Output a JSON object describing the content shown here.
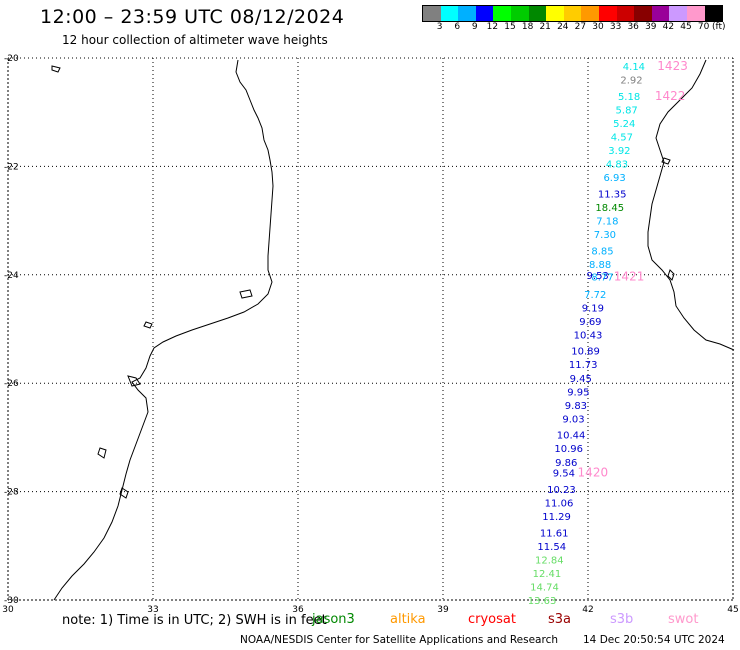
{
  "header": {
    "title": "12:00 – 23:59 UTC 08/12/2024",
    "subtitle": "12 hour collection of altimeter wave heights"
  },
  "colorbar": {
    "colors": [
      "#808080",
      "#00ffff",
      "#00b0ff",
      "#0000ff",
      "#00ff00",
      "#00cc00",
      "#008800",
      "#ffff00",
      "#ffcc00",
      "#ff9900",
      "#ff0000",
      "#cc0000",
      "#880000",
      "#990099",
      "#cc99ff",
      "#ff99cc",
      "#000000"
    ],
    "labels": [
      "3",
      "6",
      "9",
      "12",
      "15",
      "18",
      "21",
      "24",
      "27",
      "30",
      "33",
      "36",
      "39",
      "42",
      "45",
      "70"
    ],
    "unit": "(ft)"
  },
  "axes": {
    "lon_ticks": [
      "30",
      "33",
      "36",
      "39",
      "42",
      "45"
    ],
    "lat_ticks": [
      "-20",
      "-22",
      "-24",
      "-26",
      "-28",
      "-30"
    ]
  },
  "chart_data": {
    "type": "scatter",
    "xlim": [
      30,
      45
    ],
    "ylim": [
      -30,
      -20
    ],
    "grid": true,
    "x_unit": "longitude",
    "y_unit": "latitude",
    "wave_heights_ft": [
      {
        "lat": -20.15,
        "lon": 42.95,
        "v": "4.14",
        "color": "#00e6e6"
      },
      {
        "lat": -20.4,
        "lon": 42.9,
        "v": "2.92",
        "color": "#808080"
      },
      {
        "lat": -20.7,
        "lon": 42.85,
        "v": "5.18",
        "color": "#00e6e6"
      },
      {
        "lat": -20.95,
        "lon": 42.8,
        "v": "5.87",
        "color": "#00e6e6"
      },
      {
        "lat": -21.2,
        "lon": 42.75,
        "v": "5.24",
        "color": "#00e6e6"
      },
      {
        "lat": -21.45,
        "lon": 42.7,
        "v": "4.57",
        "color": "#00e6e6"
      },
      {
        "lat": -21.7,
        "lon": 42.65,
        "v": "3.92",
        "color": "#00e6e6"
      },
      {
        "lat": -21.95,
        "lon": 42.6,
        "v": "4.83",
        "color": "#00e6e6"
      },
      {
        "lat": -22.2,
        "lon": 42.55,
        "v": "6.93",
        "color": "#00b0ff"
      },
      {
        "lat": -22.5,
        "lon": 42.5,
        "v": "11.35",
        "color": "#0000cc"
      },
      {
        "lat": -22.75,
        "lon": 42.45,
        "v": "18.45",
        "color": "#008800"
      },
      {
        "lat": -23.0,
        "lon": 42.4,
        "v": "7.18",
        "color": "#00b0ff"
      },
      {
        "lat": -23.25,
        "lon": 42.35,
        "v": "7.30",
        "color": "#00b0ff"
      },
      {
        "lat": -23.55,
        "lon": 42.3,
        "v": "8.85",
        "color": "#00b0ff"
      },
      {
        "lat": -23.8,
        "lon": 42.25,
        "v": "8.88",
        "color": "#00b0ff"
      },
      {
        "lat": -24.0,
        "lon": 42.2,
        "v": "9.53",
        "color": "#0000cc"
      },
      {
        "lat": -24.03,
        "lon": 42.3,
        "v": "8.77",
        "color": "#00b0ff"
      },
      {
        "lat": -24.35,
        "lon": 42.15,
        "v": "7.72",
        "color": "#00b0ff"
      },
      {
        "lat": -24.6,
        "lon": 42.1,
        "v": "9.19",
        "color": "#0000cc"
      },
      {
        "lat": -24.85,
        "lon": 42.05,
        "v": "9.69",
        "color": "#0000cc"
      },
      {
        "lat": -25.1,
        "lon": 42.0,
        "v": "10.43",
        "color": "#0000cc"
      },
      {
        "lat": -25.4,
        "lon": 41.95,
        "v": "10.89",
        "color": "#0000cc"
      },
      {
        "lat": -25.65,
        "lon": 41.9,
        "v": "11.73",
        "color": "#0000cc"
      },
      {
        "lat": -25.9,
        "lon": 41.85,
        "v": "9.45",
        "color": "#0000cc"
      },
      {
        "lat": -26.15,
        "lon": 41.8,
        "v": "9.95",
        "color": "#0000cc"
      },
      {
        "lat": -26.4,
        "lon": 41.75,
        "v": "9.83",
        "color": "#0000cc"
      },
      {
        "lat": -26.65,
        "lon": 41.7,
        "v": "9.03",
        "color": "#0000cc"
      },
      {
        "lat": -26.95,
        "lon": 41.65,
        "v": "10.44",
        "color": "#0000cc"
      },
      {
        "lat": -27.2,
        "lon": 41.6,
        "v": "10.96",
        "color": "#0000cc"
      },
      {
        "lat": -27.45,
        "lon": 41.55,
        "v": "9.86",
        "color": "#0000cc"
      },
      {
        "lat": -27.65,
        "lon": 41.5,
        "v": "9.54",
        "color": "#0000cc"
      },
      {
        "lat": -27.95,
        "lon": 41.45,
        "v": "10.23",
        "color": "#0000cc"
      },
      {
        "lat": -28.2,
        "lon": 41.4,
        "v": "11.06",
        "color": "#0000cc"
      },
      {
        "lat": -28.45,
        "lon": 41.35,
        "v": "11.29",
        "color": "#0000cc"
      },
      {
        "lat": -28.75,
        "lon": 41.3,
        "v": "11.61",
        "color": "#0000cc"
      },
      {
        "lat": -29.0,
        "lon": 41.25,
        "v": "11.54",
        "color": "#0000cc"
      },
      {
        "lat": -29.25,
        "lon": 41.2,
        "v": "12.84",
        "color": "#66dd66"
      },
      {
        "lat": -29.5,
        "lon": 41.15,
        "v": "12.41",
        "color": "#66dd66"
      },
      {
        "lat": -29.75,
        "lon": 41.1,
        "v": "14.74",
        "color": "#66dd66"
      },
      {
        "lat": -30.0,
        "lon": 41.05,
        "v": "13.63",
        "color": "#66dd66"
      }
    ],
    "time_labels": [
      {
        "lat": -20.15,
        "lon": 43.75,
        "v": "1423"
      },
      {
        "lat": -20.7,
        "lon": 43.7,
        "v": "1422"
      },
      {
        "lat": -24.03,
        "lon": 42.85,
        "v": "1421"
      },
      {
        "lat": -27.65,
        "lon": 42.1,
        "v": "1420"
      }
    ]
  },
  "footer": {
    "note": "note: 1) Time is in UTC; 2) SWH is in feet",
    "satellites": [
      {
        "name": "jason3",
        "color": "#008800"
      },
      {
        "name": "altika",
        "color": "#ff9900"
      },
      {
        "name": "cryosat",
        "color": "#ff0000"
      },
      {
        "name": "s3a",
        "color": "#990000"
      },
      {
        "name": "s3b",
        "color": "#cc99ff"
      },
      {
        "name": "swot",
        "color": "#ff99cc"
      }
    ],
    "credit": "NOAA/NESDIS Center for Satellite Applications and Research",
    "timestamp": "14 Dec 20:50:54 UTC 2024"
  }
}
